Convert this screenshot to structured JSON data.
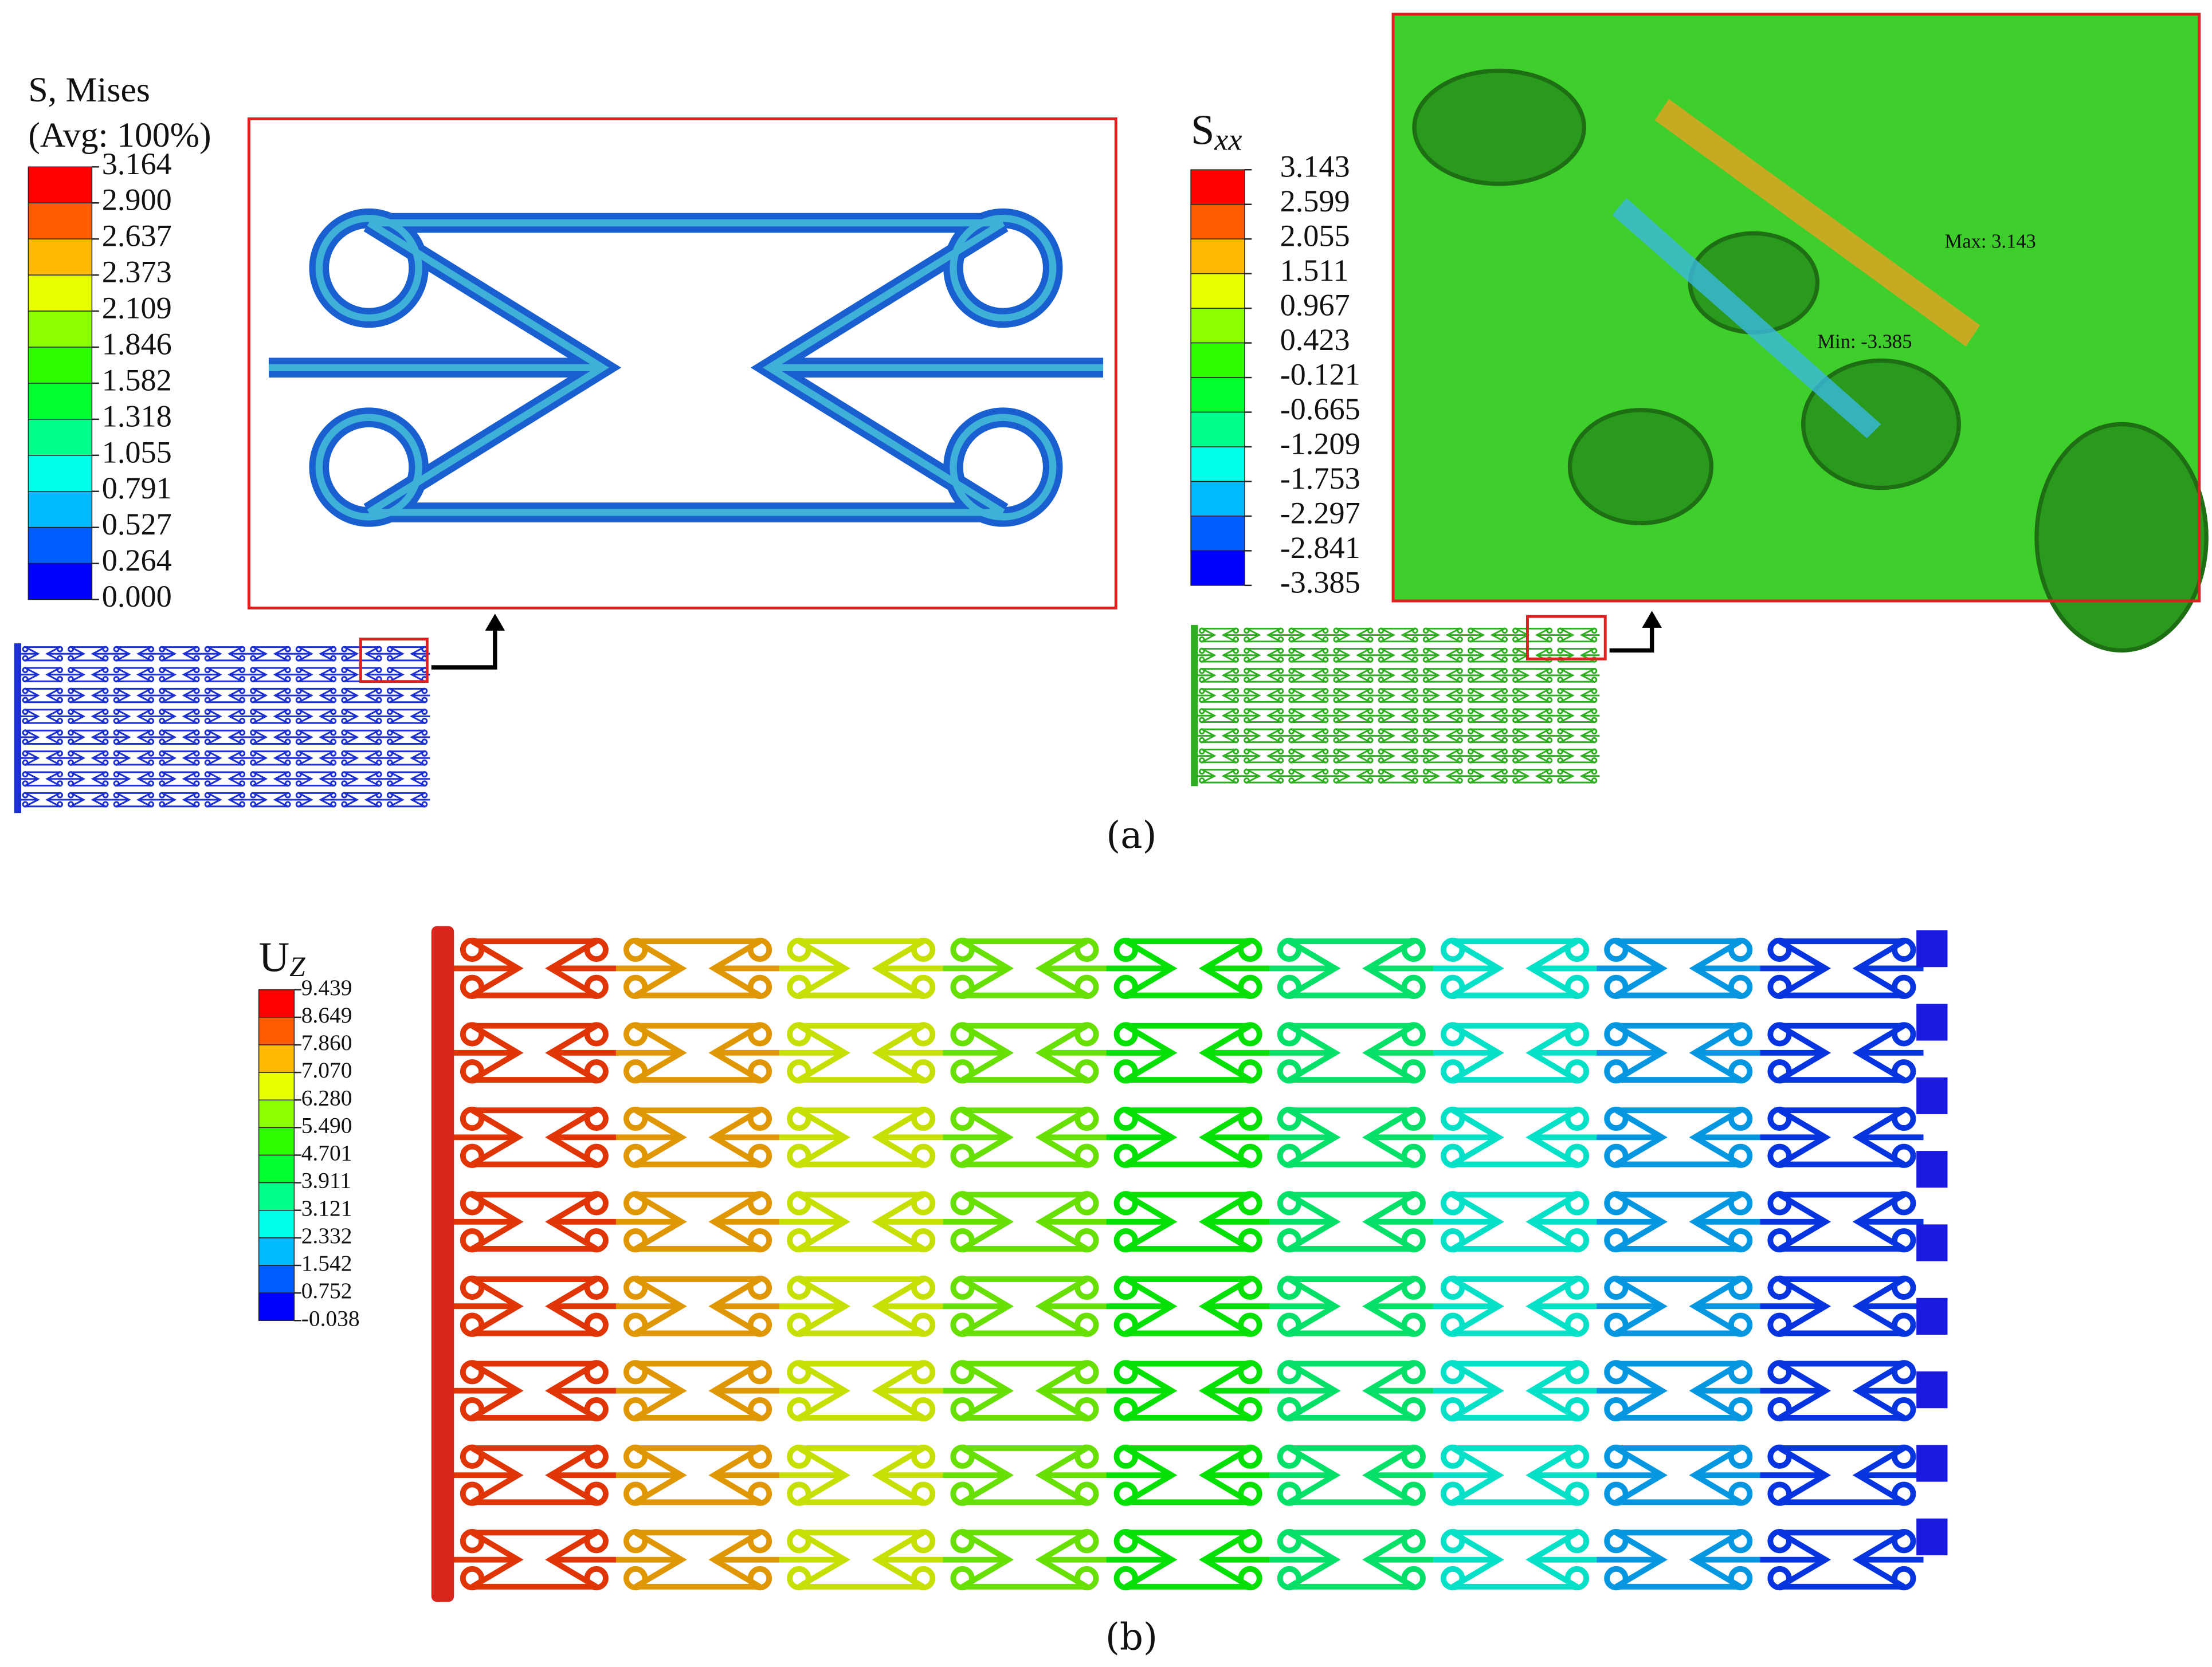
{
  "legend_colors": [
    "#ff0000",
    "#ff5d00",
    "#ffb900",
    "#e8ff00",
    "#8bff00",
    "#2eff00",
    "#00ff2e",
    "#00ff8b",
    "#00ffe8",
    "#00b9ff",
    "#005dff",
    "#0000ff"
  ],
  "panel_a": {
    "mises_legend": {
      "title": "S, Mises",
      "subtitle": "(Avg: 100%)",
      "labels": [
        "3.164",
        "2.900",
        "2.637",
        "2.373",
        "2.109",
        "1.846",
        "1.582",
        "1.318",
        "1.055",
        "0.791",
        "0.527",
        "0.264",
        "0.000"
      ]
    },
    "sxx_legend": {
      "title": "S",
      "subscript": "xx",
      "labels": [
        "3.143",
        "2.599",
        "2.055",
        "1.511",
        "0.967",
        "0.423",
        "-0.121",
        "-0.665",
        "-1.209",
        "-1.753",
        "-2.297",
        "-2.841",
        "-3.385"
      ]
    },
    "zoom_annotations": {
      "max": "Max: 3.143",
      "min": "Min: -3.385"
    },
    "caption": "(a)"
  },
  "panel_b": {
    "uz_legend": {
      "title": "U",
      "subscript": "Z",
      "labels": [
        "9.439",
        "8.649",
        "7.860",
        "7.070",
        "6.280",
        "5.490",
        "4.701",
        "3.911",
        "3.121",
        "2.332",
        "1.542",
        "0.752",
        "-0.038"
      ]
    },
    "caption": "(b)"
  }
}
